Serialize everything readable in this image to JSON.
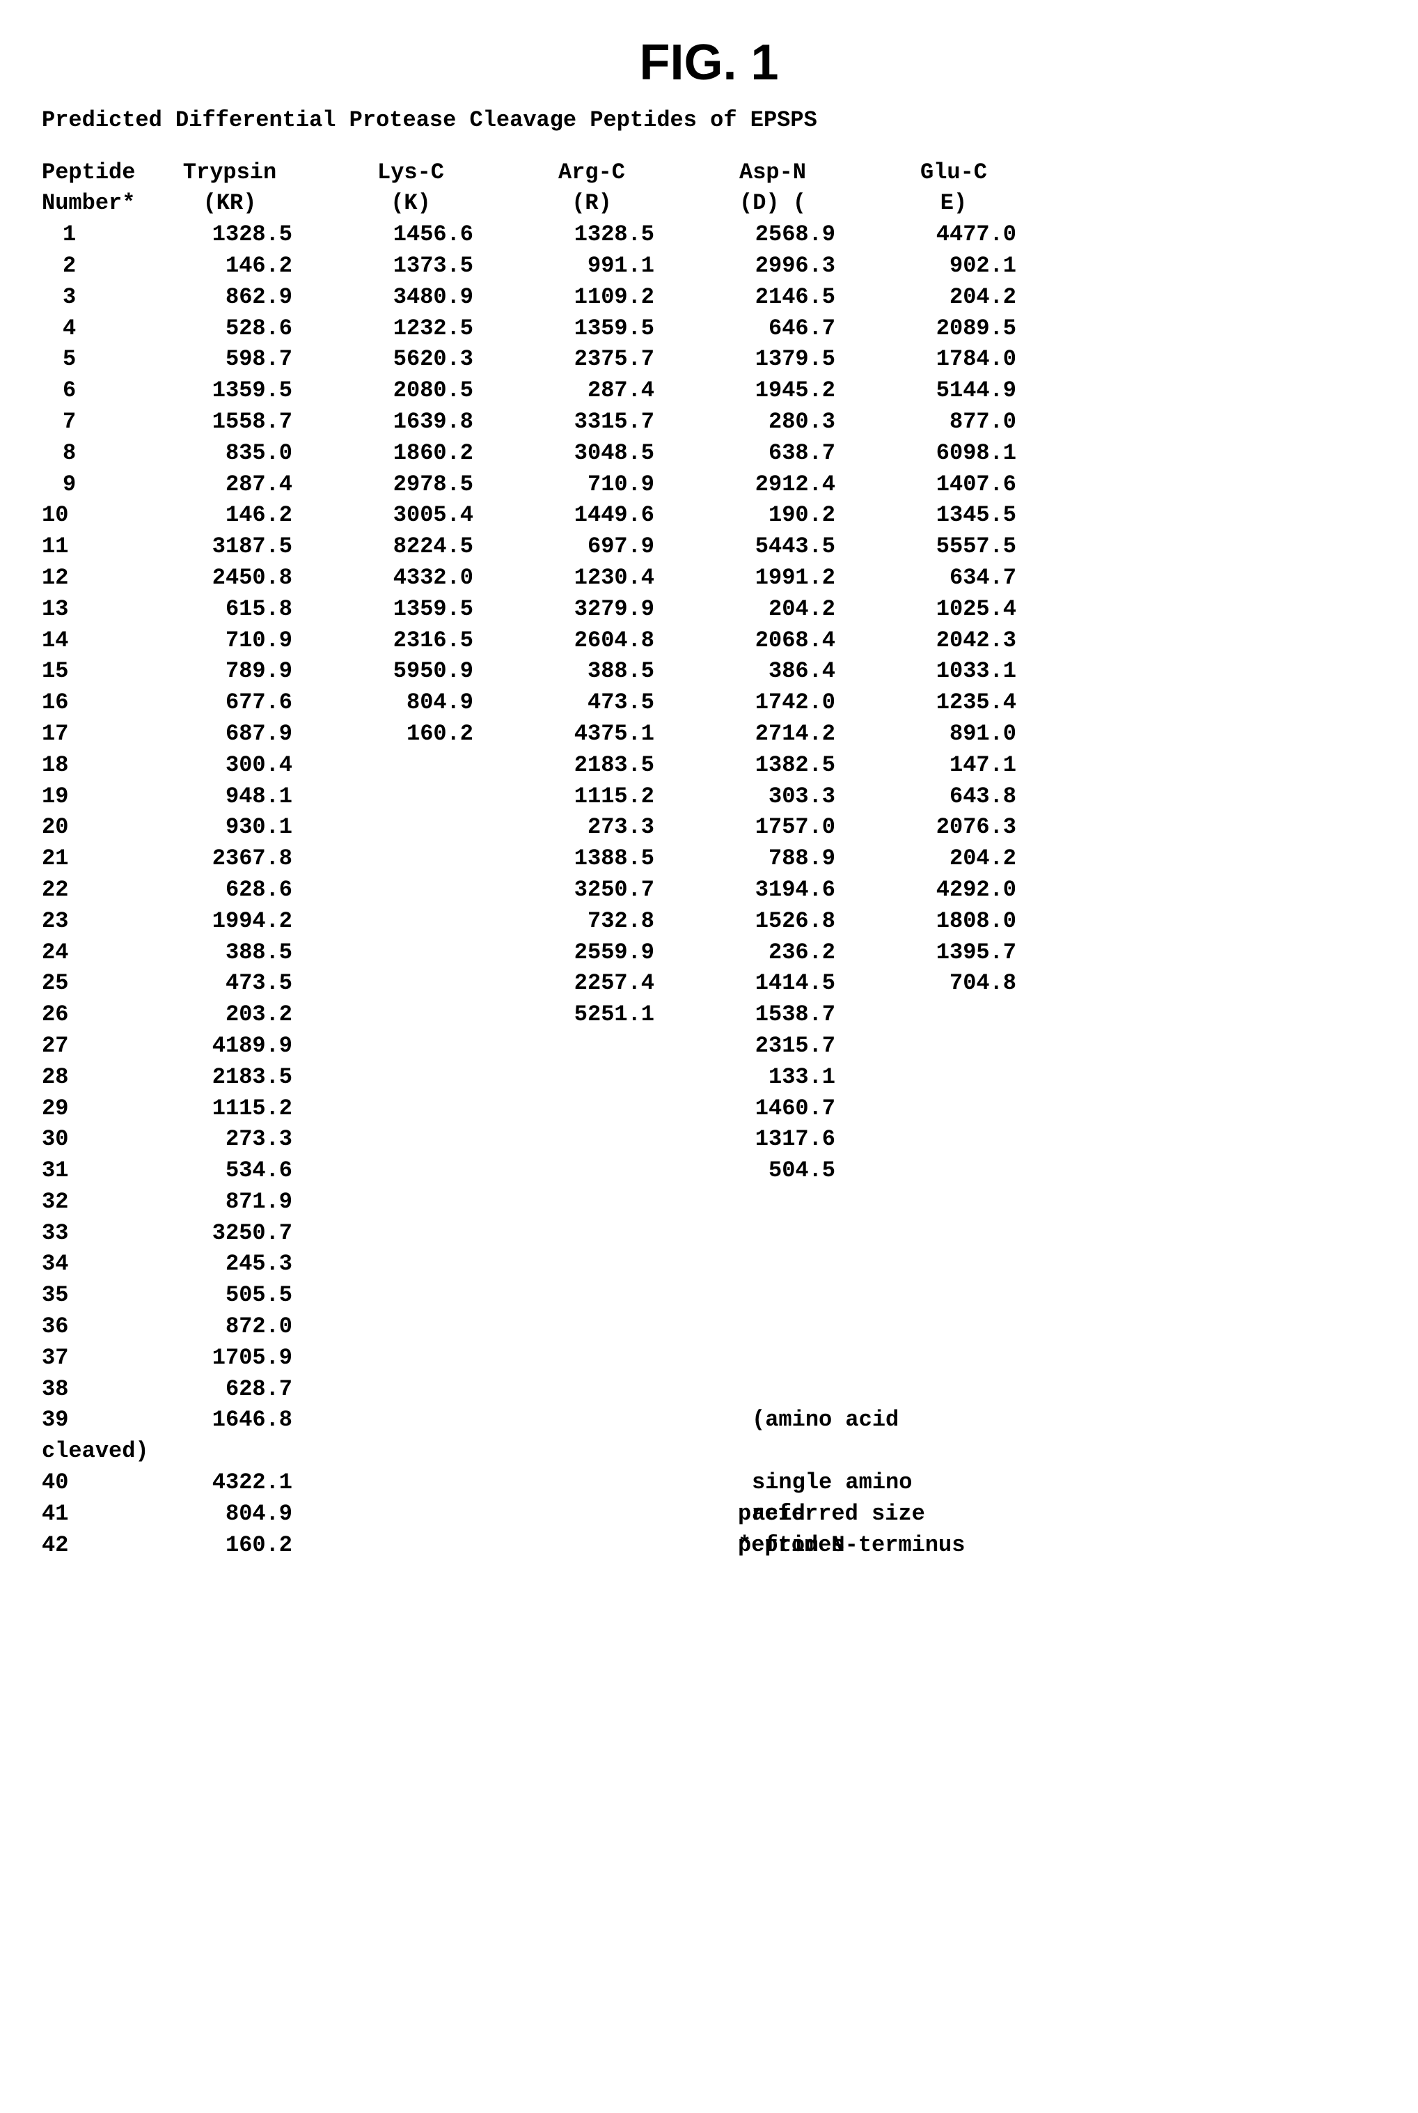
{
  "figure_title": "FIG. 1",
  "subtitle": "Predicted Differential Protease Cleavage Peptides of EPSPS",
  "headers": {
    "peptide_number_1": "Peptide",
    "peptide_number_2": "Number*",
    "trypsin_1": "Trypsin",
    "trypsin_2": "(KR)",
    "lysc_1": "Lys-C",
    "lysc_2": "(K)",
    "argc_1": "Arg-C",
    "argc_2": "(R)",
    "aspn_1": "Asp-N",
    "aspn_2": "(D) (",
    "gluc_1": "Glu-C",
    "gluc_2": "E)"
  },
  "rows": [
    {
      "n": "1",
      "trypsin": "1328.5",
      "lysc": "1456.6",
      "argc": "1328.5",
      "aspn": "2568.9",
      "gluc": "4477.0"
    },
    {
      "n": "2",
      "trypsin": "146.2",
      "lysc": "1373.5",
      "argc": "991.1",
      "aspn": "2996.3",
      "gluc": "902.1"
    },
    {
      "n": "3",
      "trypsin": "862.9",
      "lysc": "3480.9",
      "argc": "1109.2",
      "aspn": "2146.5",
      "gluc": "204.2"
    },
    {
      "n": "4",
      "trypsin": "528.6",
      "lysc": "1232.5",
      "argc": "1359.5",
      "aspn": "646.7",
      "gluc": "2089.5"
    },
    {
      "n": "5",
      "trypsin": "598.7",
      "lysc": "5620.3",
      "argc": "2375.7",
      "aspn": "1379.5",
      "gluc": "1784.0"
    },
    {
      "n": "6",
      "trypsin": "1359.5",
      "lysc": "2080.5",
      "argc": "287.4",
      "aspn": "1945.2",
      "gluc": "5144.9"
    },
    {
      "n": "7",
      "trypsin": "1558.7",
      "lysc": "1639.8",
      "argc": "3315.7",
      "aspn": "280.3",
      "gluc": "877.0"
    },
    {
      "n": "8",
      "trypsin": "835.0",
      "lysc": "1860.2",
      "argc": "3048.5",
      "aspn": "638.7",
      "gluc": "6098.1"
    },
    {
      "n": "9",
      "trypsin": "287.4",
      "lysc": "2978.5",
      "argc": "710.9",
      "aspn": "2912.4",
      "gluc": "1407.6"
    },
    {
      "n": "10",
      "trypsin": "146.2",
      "lysc": "3005.4",
      "argc": "1449.6",
      "aspn": "190.2",
      "gluc": "1345.5"
    },
    {
      "n": "11",
      "trypsin": "3187.5",
      "lysc": "8224.5",
      "argc": "697.9",
      "aspn": "5443.5",
      "gluc": "5557.5"
    },
    {
      "n": "12",
      "trypsin": "2450.8",
      "lysc": "4332.0",
      "argc": "1230.4",
      "aspn": "1991.2",
      "gluc": "634.7"
    },
    {
      "n": "13",
      "trypsin": "615.8",
      "lysc": "1359.5",
      "argc": "3279.9",
      "aspn": "204.2",
      "gluc": "1025.4"
    },
    {
      "n": "14",
      "trypsin": "710.9",
      "lysc": "2316.5",
      "argc": "2604.8",
      "aspn": "2068.4",
      "gluc": "2042.3"
    },
    {
      "n": "15",
      "trypsin": "789.9",
      "lysc": "5950.9",
      "argc": "388.5",
      "aspn": "386.4",
      "gluc": "1033.1"
    },
    {
      "n": "16",
      "trypsin": "677.6",
      "lysc": "804.9",
      "argc": "473.5",
      "aspn": "1742.0",
      "gluc": "1235.4"
    },
    {
      "n": "17",
      "trypsin": "687.9",
      "lysc": "160.2",
      "argc": "4375.1",
      "aspn": "2714.2",
      "gluc": "891.0"
    },
    {
      "n": "18",
      "trypsin": "300.4",
      "lysc": "",
      "argc": "2183.5",
      "aspn": "1382.5",
      "gluc": "147.1"
    },
    {
      "n": "19",
      "trypsin": "948.1",
      "lysc": "",
      "argc": "1115.2",
      "aspn": "303.3",
      "gluc": "643.8"
    },
    {
      "n": "20",
      "trypsin": "930.1",
      "lysc": "",
      "argc": "273.3",
      "aspn": "1757.0",
      "gluc": "2076.3"
    },
    {
      "n": "21",
      "trypsin": "2367.8",
      "lysc": "",
      "argc": "1388.5",
      "aspn": "788.9",
      "gluc": "204.2"
    },
    {
      "n": "22",
      "trypsin": "628.6",
      "lysc": "",
      "argc": "3250.7",
      "aspn": "3194.6",
      "gluc": "4292.0"
    },
    {
      "n": "23",
      "trypsin": "1994.2",
      "lysc": "",
      "argc": "732.8",
      "aspn": "1526.8",
      "gluc": "1808.0"
    },
    {
      "n": "24",
      "trypsin": "388.5",
      "lysc": "",
      "argc": "2559.9",
      "aspn": "236.2",
      "gluc": "1395.7"
    },
    {
      "n": "25",
      "trypsin": "473.5",
      "lysc": "",
      "argc": "2257.4",
      "aspn": "1414.5",
      "gluc": "704.8"
    },
    {
      "n": "26",
      "trypsin": "203.2",
      "lysc": "",
      "argc": "5251.1",
      "aspn": "1538.7",
      "gluc": ""
    },
    {
      "n": "27",
      "trypsin": "4189.9",
      "lysc": "",
      "argc": "",
      "aspn": "2315.7",
      "gluc": ""
    },
    {
      "n": "28",
      "trypsin": "2183.5",
      "lysc": "",
      "argc": "",
      "aspn": "133.1",
      "gluc": ""
    },
    {
      "n": "29",
      "trypsin": "1115.2",
      "lysc": "",
      "argc": "",
      "aspn": "1460.7",
      "gluc": ""
    },
    {
      "n": "30",
      "trypsin": "273.3",
      "lysc": "",
      "argc": "",
      "aspn": "1317.6",
      "gluc": ""
    },
    {
      "n": "31",
      "trypsin": "534.6",
      "lysc": "",
      "argc": "",
      "aspn": "504.5",
      "gluc": ""
    },
    {
      "n": "32",
      "trypsin": "871.9",
      "lysc": "",
      "argc": "",
      "aspn": "",
      "gluc": ""
    },
    {
      "n": "33",
      "trypsin": "3250.7",
      "lysc": "",
      "argc": "",
      "aspn": "",
      "gluc": ""
    },
    {
      "n": "34",
      "trypsin": "245.3",
      "lysc": "",
      "argc": "",
      "aspn": "",
      "gluc": ""
    },
    {
      "n": "35",
      "trypsin": "505.5",
      "lysc": "",
      "argc": "",
      "aspn": "",
      "gluc": ""
    },
    {
      "n": "36",
      "trypsin": "872.0",
      "lysc": "",
      "argc": "",
      "aspn": "",
      "gluc": ""
    },
    {
      "n": "37",
      "trypsin": "1705.9",
      "lysc": "",
      "argc": "",
      "aspn": "",
      "gluc": ""
    },
    {
      "n": "38",
      "trypsin": "628.7",
      "lysc": "",
      "argc": "",
      "aspn": "",
      "gluc": ""
    }
  ],
  "row39": {
    "n": "39",
    "trypsin": "1646.8",
    "note": "(amino acid"
  },
  "cleaved": "cleaved)",
  "row40": {
    "n": "40",
    "trypsin": "4322.1",
    "note": "single amino"
  },
  "row40b": {
    "note": "acid"
  },
  "row41": {
    "n": "41",
    "trypsin": "804.9",
    "note": "preferred size"
  },
  "row41b": {
    "note": "peptides"
  },
  "row42": {
    "n": "42",
    "trypsin": "160.2",
    "note": "* from N-terminus"
  }
}
